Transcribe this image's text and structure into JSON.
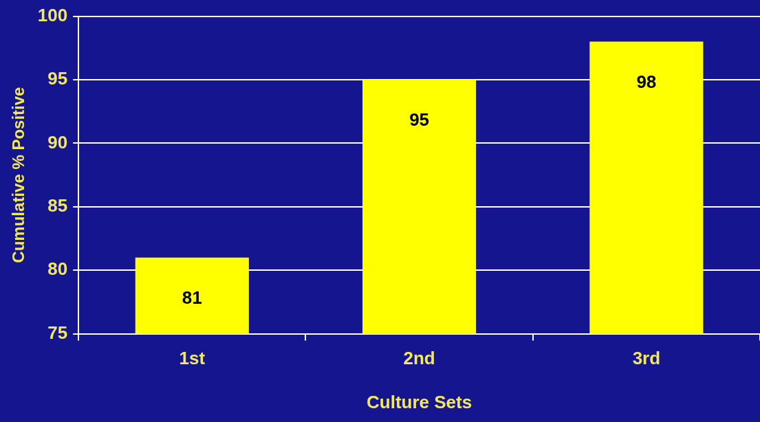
{
  "chart_data": {
    "type": "bar",
    "xlabel": "Culture Sets",
    "ylabel": "Cumulative % Positive",
    "categories": [
      "1st",
      "2nd",
      "3rd"
    ],
    "values": [
      81,
      95,
      98
    ],
    "color": "#ffff00",
    "ylim": [
      75,
      100
    ],
    "yticks": [
      75,
      80,
      85,
      90,
      95,
      100
    ],
    "grid": "y",
    "data_labels": true,
    "legend": false
  }
}
